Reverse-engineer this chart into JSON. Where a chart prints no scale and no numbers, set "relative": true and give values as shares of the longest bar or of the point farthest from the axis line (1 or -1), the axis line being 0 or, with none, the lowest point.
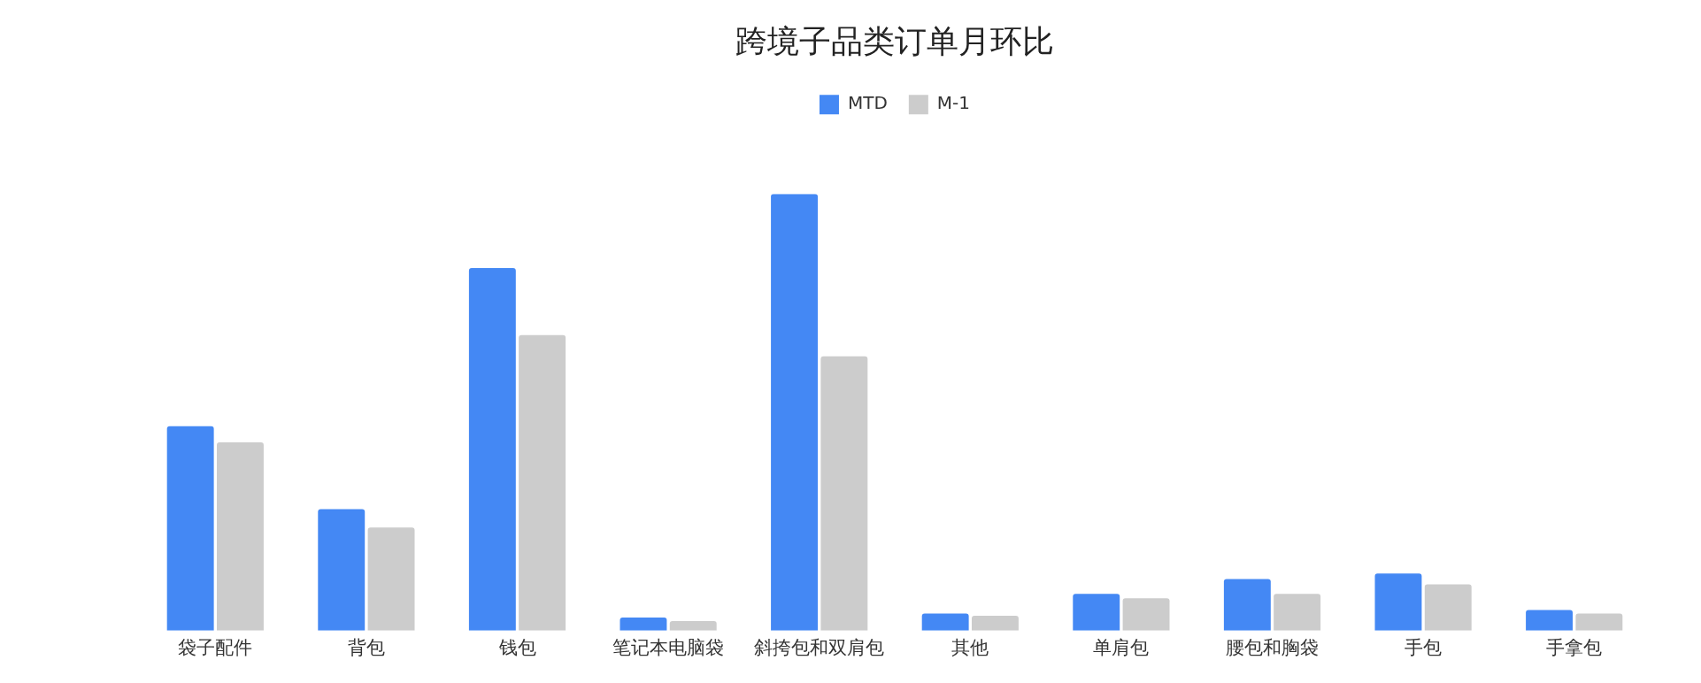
{
  "chart_data": {
    "type": "bar",
    "title": "跨境子品类订单月环比",
    "relative": true,
    "legend": "top",
    "grid": false,
    "categories": [
      "袋子配件",
      "背包",
      "钱包",
      "笔记本电脑袋",
      "斜挎包和双肩包",
      "其他",
      "单肩包",
      "腰包和胸袋",
      "手包",
      "手拿包"
    ],
    "series": [
      {
        "name": "MTD",
        "color": "#4488f4",
        "values": [
          0.468,
          0.278,
          0.83,
          0.03,
          1,
          0.039,
          0.084,
          0.118,
          0.131,
          0.047
        ]
      },
      {
        "name": "M-1",
        "color": "#cccccc",
        "values": [
          0.431,
          0.236,
          0.677,
          0.022,
          0.628,
          0.034,
          0.074,
          0.084,
          0.106,
          0.039
        ]
      }
    ]
  }
}
